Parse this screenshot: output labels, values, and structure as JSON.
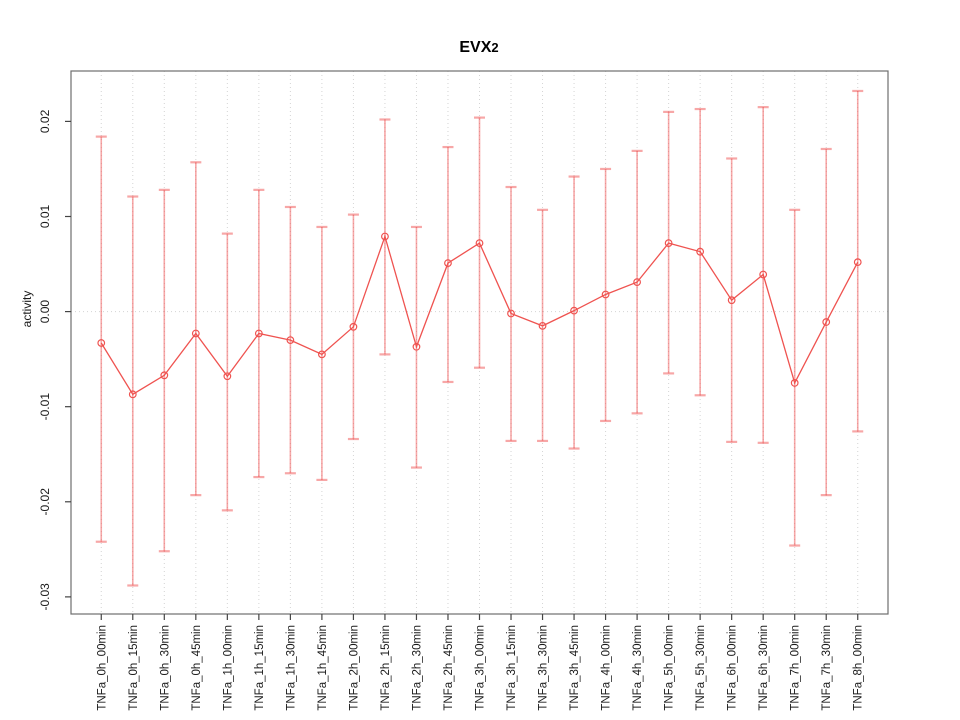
{
  "chart_data": {
    "type": "line",
    "title": "EVX2",
    "title_main": "EVX",
    "title_sub": "2",
    "ylabel": "activity",
    "xlabel": "",
    "legend": "none",
    "grid": {
      "vertical_dotted_at_each_x": true,
      "horizontal_dotted_at_zero": true
    },
    "x_labels_rotated_90": true,
    "ylim": [
      -0.0318,
      0.0253
    ],
    "yticks": [
      0.02,
      0.01,
      0.0,
      -0.01,
      -0.02,
      -0.03
    ],
    "ytick_labels": [
      "0.02",
      "0.01",
      "0.00",
      "-0.01",
      "-0.02",
      "-0.03"
    ],
    "categories": [
      "TNFa_0h_00min",
      "TNFa_0h_15min",
      "TNFa_0h_30min",
      "TNFa_0h_45min",
      "TNFa_1h_00min",
      "TNFa_1h_15min",
      "TNFa_1h_30min",
      "TNFa_1h_45min",
      "TNFa_2h_00min",
      "TNFa_2h_15min",
      "TNFa_2h_30min",
      "TNFa_2h_45min",
      "TNFa_3h_00min",
      "TNFa_3h_15min",
      "TNFa_3h_30min",
      "TNFa_3h_45min",
      "TNFa_4h_00min",
      "TNFa_4h_30min",
      "TNFa_5h_00min",
      "TNFa_5h_30min",
      "TNFa_6h_00min",
      "TNFa_6h_30min",
      "TNFa_7h_00min",
      "TNFa_7h_30min",
      "TNFa_8h_00min"
    ],
    "series": [
      {
        "name": "activity",
        "marker": "open-circle",
        "values": [
          -0.0033,
          -0.0087,
          -0.0067,
          -0.0023,
          -0.0068,
          -0.0023,
          -0.003,
          -0.0045,
          -0.0016,
          0.0079,
          -0.0037,
          0.0051,
          0.0072,
          -0.0002,
          -0.0015,
          0.0001,
          0.0018,
          0.0031,
          0.0072,
          0.0063,
          0.0012,
          0.0039,
          -0.0075,
          -0.0011,
          0.0052
        ],
        "error_high": [
          0.0184,
          0.0121,
          0.0128,
          0.0157,
          0.0082,
          0.0128,
          0.011,
          0.0089,
          0.0102,
          0.0202,
          0.0089,
          0.0173,
          0.0204,
          0.0131,
          0.0107,
          0.0142,
          0.015,
          0.0169,
          0.021,
          0.0213,
          0.0161,
          0.0215,
          0.0107,
          0.0171,
          0.0232
        ],
        "error_low": [
          -0.0242,
          -0.0288,
          -0.0252,
          -0.0193,
          -0.0209,
          -0.0174,
          -0.017,
          -0.0177,
          -0.0134,
          -0.0045,
          -0.0164,
          -0.0074,
          -0.0059,
          -0.0136,
          -0.0136,
          -0.0144,
          -0.0115,
          -0.0107,
          -0.0065,
          -0.0088,
          -0.0137,
          -0.0138,
          -0.0246,
          -0.0193,
          -0.0126
        ]
      }
    ],
    "colors": {
      "series": "#ef5350",
      "error_bar": "rgba(240,80,80,0.5)",
      "grid": "#d4d4d4",
      "axis": "#6e6e6e",
      "tick": "#444444",
      "text": "#1a1a1a",
      "background": "#ffffff"
    }
  }
}
